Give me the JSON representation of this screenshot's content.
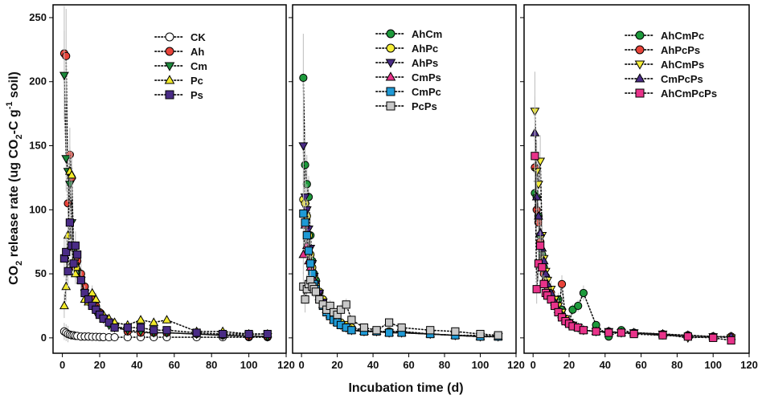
{
  "chart_data": {
    "type": "scatter",
    "ylabel": "CO2 release rate (ug CO2-C g-1 soil)",
    "ylabel_parts": {
      "a": "CO",
      "b": "2",
      "c": " release rate (ug CO",
      "d": "2",
      "e": "-C g",
      "f": "-1",
      "g": " soil)"
    },
    "xlabel": "Incubation time (d)",
    "xlim": [
      -5,
      120
    ],
    "ylim": [
      -12,
      260
    ],
    "x_ticks": [
      "0",
      "20",
      "40",
      "60",
      "80",
      "100",
      "120"
    ],
    "y_ticks": [
      "0",
      "50",
      "100",
      "150",
      "200",
      "250"
    ],
    "y_tick_values": [
      0,
      50,
      100,
      150,
      200,
      250
    ],
    "x_tick_values": [
      0,
      20,
      40,
      60,
      80,
      100,
      120
    ],
    "days": [
      1,
      2,
      3,
      4,
      5,
      6,
      7,
      8,
      10,
      12,
      14,
      16,
      18,
      20,
      22,
      25,
      28,
      35,
      42,
      49,
      56,
      72,
      86,
      100,
      110
    ],
    "panels": [
      {
        "series": [
          {
            "name": "CK",
            "marker": "circle",
            "color": "#ffffff",
            "values": [
              5,
              4,
              3,
              2.5,
              2,
              2,
              1.5,
              1.5,
              1,
              1,
              1,
              0.8,
              0.8,
              0.7,
              0.6,
              0.5,
              0.5,
              0.5,
              0.5,
              0.5,
              0.5,
              0.5,
              0.5,
              0.5,
              0.5
            ]
          },
          {
            "name": "Ah",
            "marker": "circle",
            "color": "#e8443a",
            "values": [
              222,
              220,
              105,
              143,
              125,
              70,
              55,
              60,
              50,
              40,
              32,
              30,
              25,
              20,
              15,
              12,
              10,
              5,
              4,
              4,
              4,
              3,
              2,
              1,
              1
            ]
          },
          {
            "name": "Cm",
            "marker": "triangle-down",
            "color": "#1c8a3c",
            "values": [
              205,
              140,
              130,
              120,
              90,
              70,
              55,
              50,
              45,
              35,
              28,
              25,
              20,
              18,
              15,
              10,
              8,
              6,
              5,
              4,
              4,
              3,
              2,
              2,
              1
            ]
          },
          {
            "name": "Pc",
            "marker": "triangle-up",
            "color": "#f2ea2a",
            "values": [
              25,
              40,
              80,
              130,
              127,
              60,
              50,
              55,
              45,
              30,
              28,
              35,
              30,
              20,
              18,
              15,
              12,
              10,
              14,
              12,
              14,
              5,
              5,
              3,
              3
            ]
          },
          {
            "name": "Ps",
            "marker": "square",
            "color": "#4a2c86",
            "values": [
              62,
              67,
              52,
              90,
              72,
              58,
              72,
              65,
              45,
              35,
              30,
              25,
              22,
              18,
              15,
              12,
              8,
              8,
              8,
              6,
              6,
              4,
              3,
              3,
              3
            ]
          }
        ]
      },
      {
        "series": [
          {
            "name": "AhCm",
            "marker": "circle",
            "color": "#1e9a3c",
            "values": [
              203,
              135,
              120,
              110,
              80,
              60,
              50,
              45,
              35,
              30,
              25,
              20,
              15,
              12,
              10,
              8,
              7,
              5,
              5,
              5,
              5,
              3,
              2,
              1,
              1
            ]
          },
          {
            "name": "AhPc",
            "marker": "circle",
            "color": "#f5ee38",
            "values": [
              108,
              105,
              95,
              80,
              65,
              55,
              48,
              42,
              36,
              30,
              25,
              20,
              16,
              14,
              12,
              10,
              8,
              6,
              5,
              5,
              5,
              3,
              2,
              2,
              1
            ]
          },
          {
            "name": "AhPs",
            "marker": "triangle-down",
            "color": "#4a2c86",
            "values": [
              150,
              110,
              100,
              85,
              70,
              58,
              48,
              42,
              35,
              28,
              22,
              18,
              15,
              12,
              10,
              8,
              6,
              5,
              5,
              4,
              4,
              3,
              2,
              1,
              1
            ]
          },
          {
            "name": "CmPs",
            "marker": "triangle-up",
            "color": "#e8338a",
            "values": [
              65,
              88,
              72,
              60,
              55,
              50,
              45,
              40,
              32,
              26,
              22,
              18,
              14,
              12,
              10,
              8,
              6,
              5,
              5,
              4,
              4,
              3,
              2,
              1,
              1
            ]
          },
          {
            "name": "CmPc",
            "marker": "square",
            "color": "#1f9ad6",
            "values": [
              97,
              90,
              80,
              68,
              58,
              50,
              42,
              38,
              30,
              25,
              20,
              17,
              14,
              12,
              10,
              8,
              6,
              5,
              5,
              4,
              4,
              3,
              2,
              1,
              1
            ]
          },
          {
            "name": "PcPs",
            "marker": "square",
            "color": "#c8c8c8",
            "values": [
              40,
              30,
              38,
              42,
              45,
              40,
              38,
              36,
              30,
              26,
              22,
              25,
              20,
              18,
              22,
              26,
              14,
              8,
              6,
              12,
              8,
              6,
              5,
              3,
              2
            ]
          }
        ]
      },
      {
        "series": [
          {
            "name": "AhCmPc",
            "marker": "circle",
            "color": "#1e9a3c",
            "values": [
              113,
              110,
              95,
              80,
              65,
              55,
              48,
              40,
              30,
              25,
              30,
              22,
              15,
              12,
              22,
              25,
              35,
              10,
              1,
              6,
              4,
              2,
              2,
              1,
              1
            ]
          },
          {
            "name": "AhPcPs",
            "marker": "circle",
            "color": "#e8443a",
            "values": [
              133,
              100,
              90,
              75,
              60,
              50,
              45,
              40,
              35,
              28,
              20,
              42,
              15,
              12,
              10,
              8,
              6,
              5,
              5,
              4,
              4,
              3,
              2,
              1,
              1
            ]
          },
          {
            "name": "AhCmPs",
            "marker": "triangle-down",
            "color": "#f5ee38",
            "values": [
              177,
              130,
              120,
              138,
              80,
              62,
              52,
              45,
              38,
              30,
              25,
              20,
              15,
              12,
              10,
              8,
              6,
              5,
              5,
              4,
              4,
              3,
              0,
              1,
              0
            ]
          },
          {
            "name": "CmPcPs",
            "marker": "triangle-up",
            "color": "#4a2c86",
            "values": [
              160,
              110,
              95,
              82,
              70,
              60,
              50,
              42,
              35,
              28,
              22,
              18,
              14,
              12,
              10,
              8,
              6,
              5,
              5,
              4,
              4,
              3,
              2,
              1,
              1
            ]
          },
          {
            "name": "AhCmPcPs",
            "marker": "square",
            "color": "#e8338a",
            "values": [
              142,
              38,
              58,
              72,
              55,
              42,
              35,
              33,
              30,
              25,
              20,
              16,
              13,
              11,
              9,
              8,
              6,
              5,
              4,
              4,
              3,
              2,
              1,
              0,
              -2
            ]
          }
        ]
      }
    ]
  }
}
